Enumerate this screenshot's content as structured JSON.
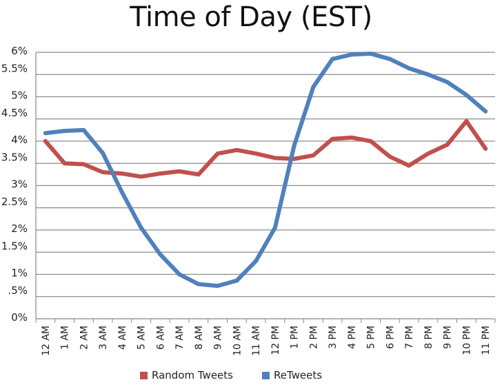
{
  "chart_data": {
    "type": "line",
    "title": "Time of Day (EST)",
    "xlabel": "",
    "ylabel": "",
    "categories": [
      "12 AM",
      "1 AM",
      "2 AM",
      "3 AM",
      "4 AM",
      "5 AM",
      "6 AM",
      "7 AM",
      "8 AM",
      "9 AM",
      "10 AM",
      "11 AM",
      "12 PM",
      "1 PM",
      "2 PM",
      "3 PM",
      "4 PM",
      "5 PM",
      "6 PM",
      "7 PM",
      "8 PM",
      "9 PM",
      "10 PM",
      "11 PM"
    ],
    "yticks": [
      "0%",
      ".5%",
      "1%",
      "1.5%",
      "2%",
      "2.5%",
      "3%",
      "3.5%",
      "4%",
      "4.5%",
      "5%",
      "5.5%",
      "6%"
    ],
    "ylim": [
      0,
      6
    ],
    "grid": true,
    "legend_position": "bottom",
    "series": [
      {
        "name": "Random Tweets",
        "color": "#c0504d",
        "values": [
          4.0,
          3.5,
          3.48,
          3.3,
          3.27,
          3.2,
          3.27,
          3.32,
          3.25,
          3.72,
          3.8,
          3.72,
          3.62,
          3.6,
          3.68,
          4.05,
          4.08,
          4.0,
          3.65,
          3.45,
          3.72,
          3.92,
          4.45,
          3.83
        ]
      },
      {
        "name": "ReTweets",
        "color": "#4f81bd",
        "values": [
          4.18,
          4.23,
          4.25,
          3.73,
          2.85,
          2.05,
          1.45,
          1.0,
          0.78,
          0.74,
          0.86,
          1.3,
          2.05,
          3.9,
          5.22,
          5.85,
          5.95,
          5.97,
          5.85,
          5.64,
          5.5,
          5.33,
          5.04,
          4.67
        ]
      }
    ]
  }
}
